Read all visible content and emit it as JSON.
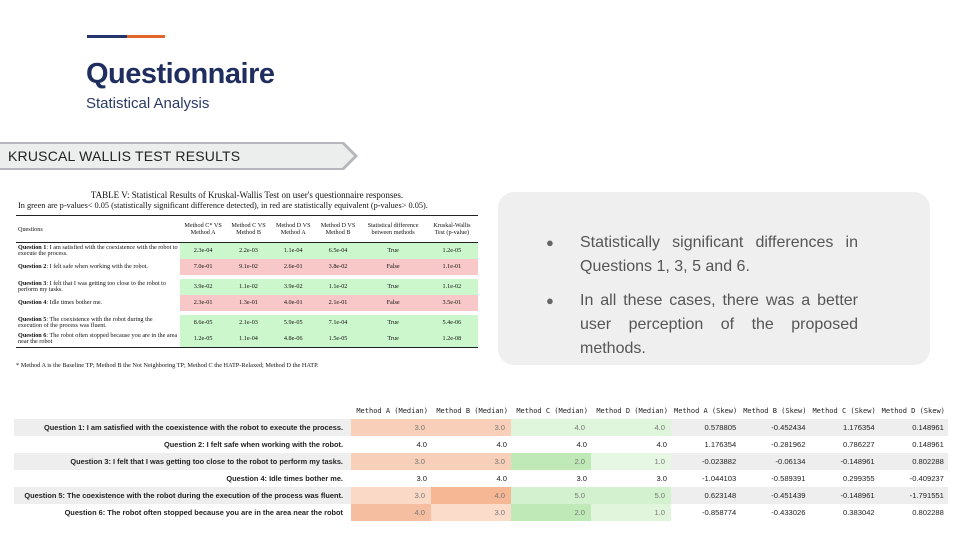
{
  "header": {
    "title": "Questionnaire",
    "subtitle": "Statistical Analysis",
    "accent_colors": [
      "#24356b",
      "#e0662a"
    ]
  },
  "section_label": "KRUSCAL WALLIS TEST RESULTS",
  "paper_table": {
    "caption": "TABLE V: Statistical Results of Kruskal-Wallis Test on user's questionnaire responses.",
    "note": "In green are p-values< 0.05 (statistically significant difference detected), in red are statistically equivalent (p-values> 0.05).",
    "headers": [
      "Questions",
      "Method C* VS Method A",
      "Method C VS Method B",
      "Method D VS Method A",
      "Method D VS Method B",
      "Statistical difference between methods",
      "Kruskal-Wallis Test (p-value)"
    ],
    "rows": [
      {
        "num": "Question 1",
        "text": ": I am satisfied with the coexistence with the robot to execute the process.",
        "vals": [
          "2.3e-04",
          "2.2e-03",
          "1.1e-04",
          "6.5e-04",
          "True",
          "1.2e-05"
        ],
        "sig": true
      },
      {
        "num": "Question 2",
        "text": ": I felt safe when working with the robot.",
        "vals": [
          "7.0e-01",
          "9.1e-02",
          "2.6e-01",
          "3.8e-02",
          "False",
          "1.1e-01"
        ],
        "sig": false
      },
      {
        "num": "Question 3",
        "text": ": I felt that I was getting too close to the robot to perform my tasks.",
        "vals": [
          "3.9e-02",
          "1.1e-02",
          "3.9e-02",
          "1.1e-02",
          "True",
          "1.1e-02"
        ],
        "sig": true
      },
      {
        "num": "Question 4",
        "text": ": Idle times bother me.",
        "vals": [
          "2.3e-01",
          "1.3e-01",
          "4.0e-01",
          "2.1e-01",
          "False",
          "3.5e-01"
        ],
        "sig": false
      },
      {
        "num": "Question 5",
        "text": ": The coexistence with the robot during the execution of the process was fluent.",
        "vals": [
          "8.6e-05",
          "2.1e-03",
          "5.9e-05",
          "7.1e-04",
          "True",
          "5.4e-06"
        ],
        "sig": true
      },
      {
        "num": "Question 6",
        "text": ": The robot often stopped because you are in the area near the robot",
        "vals": [
          "1.2e-05",
          "1.1e-04",
          "4.8e-06",
          "1.5e-05",
          "True",
          "1.2e-08"
        ],
        "sig": true
      }
    ],
    "footnote": "* Method A is the Baseline TP; Method B the Not Neighboring TP; Method C the HATP-Relaxed; Method D the HATP."
  },
  "bullets": [
    "Statistically significant differences in Questions 1, 3, 5 and 6.",
    "In all these cases, there was a better user perception of the proposed methods."
  ],
  "data_table": {
    "headers": [
      "Method A (Median)",
      "Method B (Median)",
      "Method C (Median)",
      "Method D (Median)",
      "Method A (Skew)",
      "Method B (Skew)",
      "Method C (Skew)",
      "Method D (Skew)"
    ],
    "rows": [
      {
        "label": "Question 1: I am satisfied with the coexistence with the robot to execute the process.",
        "medians": [
          "3.0",
          "3.0",
          "4.0",
          "4.0"
        ],
        "colors": [
          "#f8cfb8",
          "#f8cfb8",
          "#dff5dc",
          "#dff5dc"
        ],
        "skews": [
          "0.578805",
          "-0.452434",
          "1.176354",
          "0.148961"
        ]
      },
      {
        "label": "Question 2: I felt safe when working with the robot.",
        "medians": [
          "4.0",
          "4.0",
          "4.0",
          "4.0"
        ],
        "colors": [
          "",
          "",
          "",
          ""
        ],
        "skews": [
          "1.176354",
          "-0.281962",
          "0.786227",
          "0.148961"
        ]
      },
      {
        "label": "Question 3: I felt that I was getting too close to the robot to perform my tasks.",
        "medians": [
          "3.0",
          "3.0",
          "2.0",
          "1.0"
        ],
        "colors": [
          "#f8cfb8",
          "#f8cfb8",
          "#bfeab7",
          "#e6f7e3"
        ],
        "skews": [
          "-0.023882",
          "-0.06134",
          "-0.148961",
          "0.802288"
        ]
      },
      {
        "label": "Question 4: Idle times bother me.",
        "medians": [
          "3.0",
          "4.0",
          "3.0",
          "3.0"
        ],
        "colors": [
          "",
          "",
          "",
          ""
        ],
        "skews": [
          "-1.044103",
          "-0.589391",
          "0.299355",
          "-0.409237"
        ]
      },
      {
        "label": "Question 5: The coexistence with the robot during the execution of the process was fluent.",
        "medians": [
          "3.0",
          "4.0",
          "5.0",
          "5.0"
        ],
        "colors": [
          "#fbd9c7",
          "#f5b794",
          "#d3f0cf",
          "#d3f0cf"
        ],
        "skews": [
          "0.623148",
          "-0.451439",
          "-0.148961",
          "-1.791551"
        ]
      },
      {
        "label": "Question 6: The robot often stopped because you are in the area near the robot",
        "medians": [
          "4.0",
          "3.0",
          "2.0",
          "1.0"
        ],
        "colors": [
          "#f6bea0",
          "#fbdccb",
          "#bfeab7",
          "#e0f5dc"
        ],
        "skews": [
          "-0.858774",
          "-0.433026",
          "0.383042",
          "0.802288"
        ]
      }
    ]
  }
}
